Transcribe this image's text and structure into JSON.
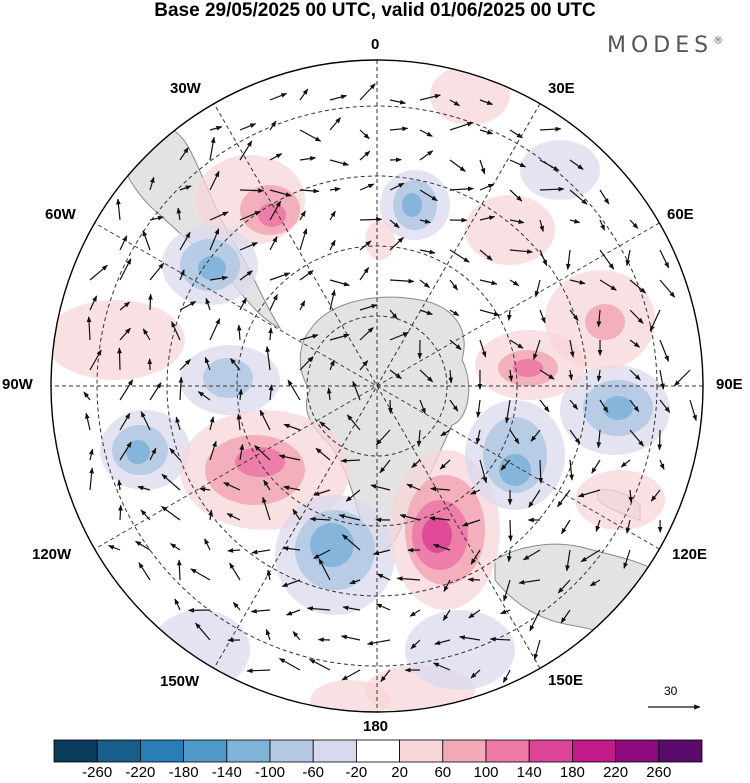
{
  "title": "Base 29/05/2025 00 UTC, valid 01/06/2025 00 UTC",
  "brand": "MODES",
  "brand_mark": "®",
  "longitude_labels": {
    "lon_0": "0",
    "lon_30e": "30E",
    "lon_60e": "60E",
    "lon_90e": "90E",
    "lon_120e": "120E",
    "lon_150e": "150E",
    "lon_180": "180",
    "lon_150w": "150W",
    "lon_120w": "120W",
    "lon_90w": "90W",
    "lon_60w": "60W",
    "lon_30w": "30W"
  },
  "reference_vector_label": "30",
  "projection": "south-polar-stereographic",
  "colorbar": {
    "ticks": [
      "-260",
      "-220",
      "-180",
      "-140",
      "-100",
      "-60",
      "-20",
      "20",
      "60",
      "100",
      "140",
      "180",
      "220",
      "260"
    ],
    "colors": [
      "#0b3c5d",
      "#175e8a",
      "#2b7db5",
      "#4f9ac9",
      "#7fb3d8",
      "#b3c9e4",
      "#d9d9ee",
      "#ffffff",
      "#f7d5d8",
      "#f2aab8",
      "#ec79a6",
      "#dc4595",
      "#c01b88",
      "#8e0b7e",
      "#5a0b6b"
    ]
  },
  "colors": {
    "land": "#e3e3e3",
    "coast": "#8a8a8a",
    "grid": "#333333",
    "arrow": "#111111"
  }
}
